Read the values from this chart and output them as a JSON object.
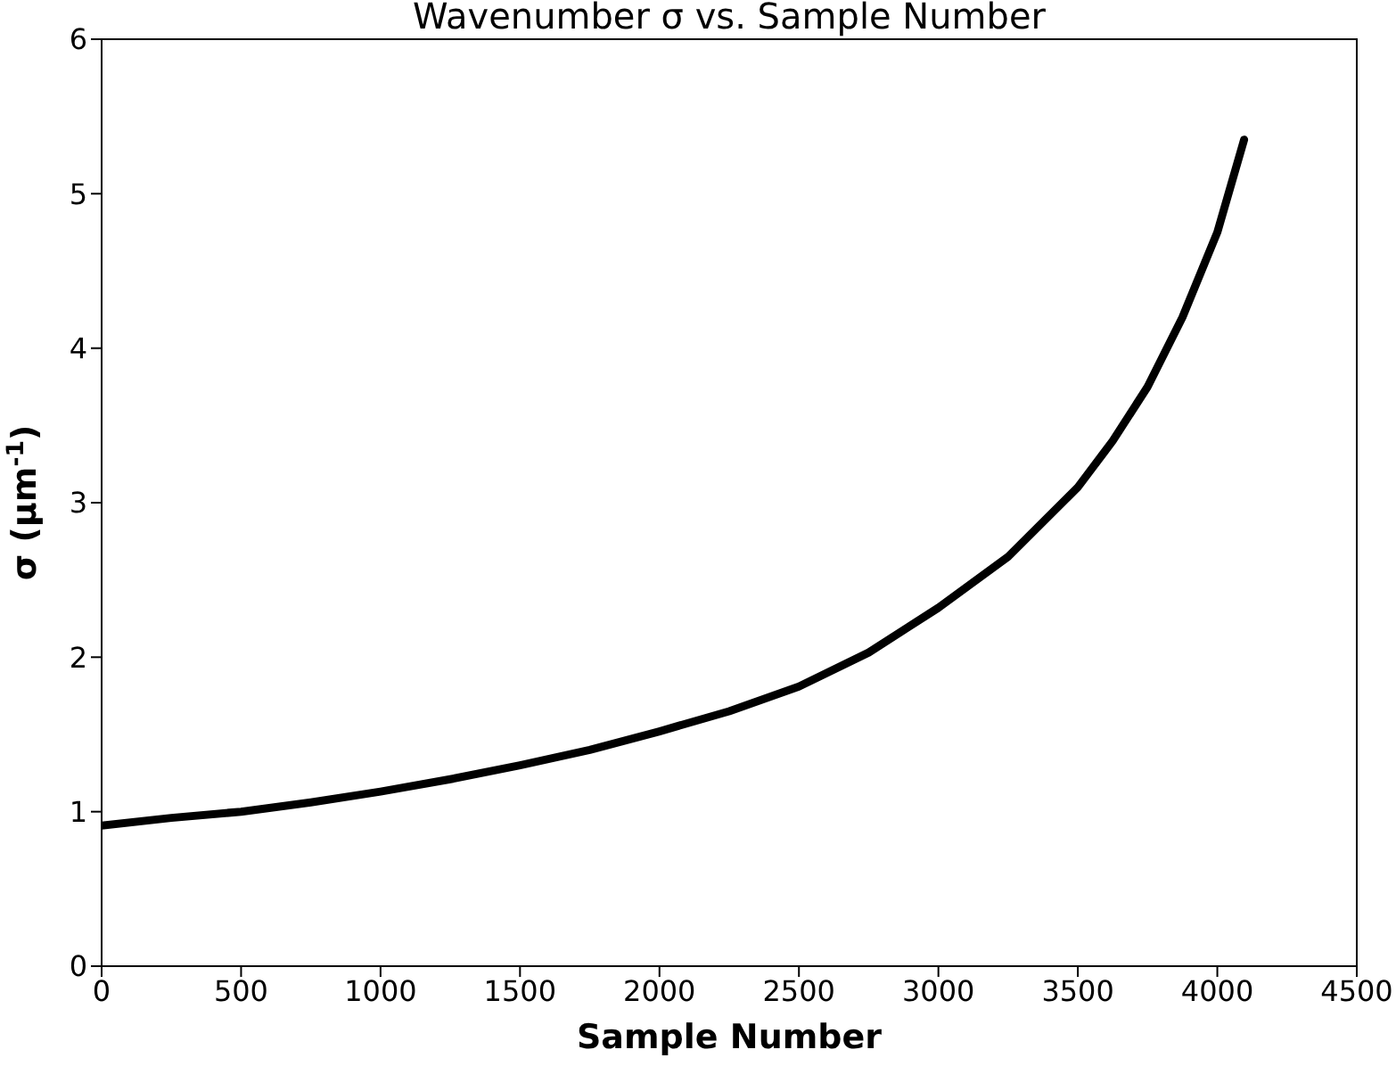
{
  "chart_data": {
    "type": "line",
    "title": "Wavenumber σ vs. Sample Number",
    "xlabel": "Sample Number",
    "ylabel": "σ (μm$^{-1}$)",
    "x": [
      0,
      250,
      500,
      750,
      1000,
      1250,
      1500,
      1750,
      2000,
      2250,
      2500,
      2750,
      3000,
      3250,
      3500,
      3625,
      3750,
      3875,
      4000,
      4096
    ],
    "series": [
      {
        "color": "#000000",
        "values": [
          0.91,
          0.96,
          1.0,
          1.06,
          1.13,
          1.21,
          1.3,
          1.4,
          1.52,
          1.65,
          1.81,
          2.03,
          2.32,
          2.65,
          3.1,
          3.4,
          3.75,
          4.2,
          4.75,
          5.35
        ]
      }
    ],
    "xlim": [
      0,
      4500
    ],
    "xticks": [
      0,
      500,
      1000,
      1500,
      2000,
      2500,
      3000,
      3500,
      4000,
      4500
    ],
    "ylim": [
      0,
      6
    ],
    "yticks": [
      0,
      1,
      2,
      3,
      4,
      5,
      6
    ],
    "grid": false,
    "legend": false,
    "marker": "none",
    "line_style": "solid"
  }
}
